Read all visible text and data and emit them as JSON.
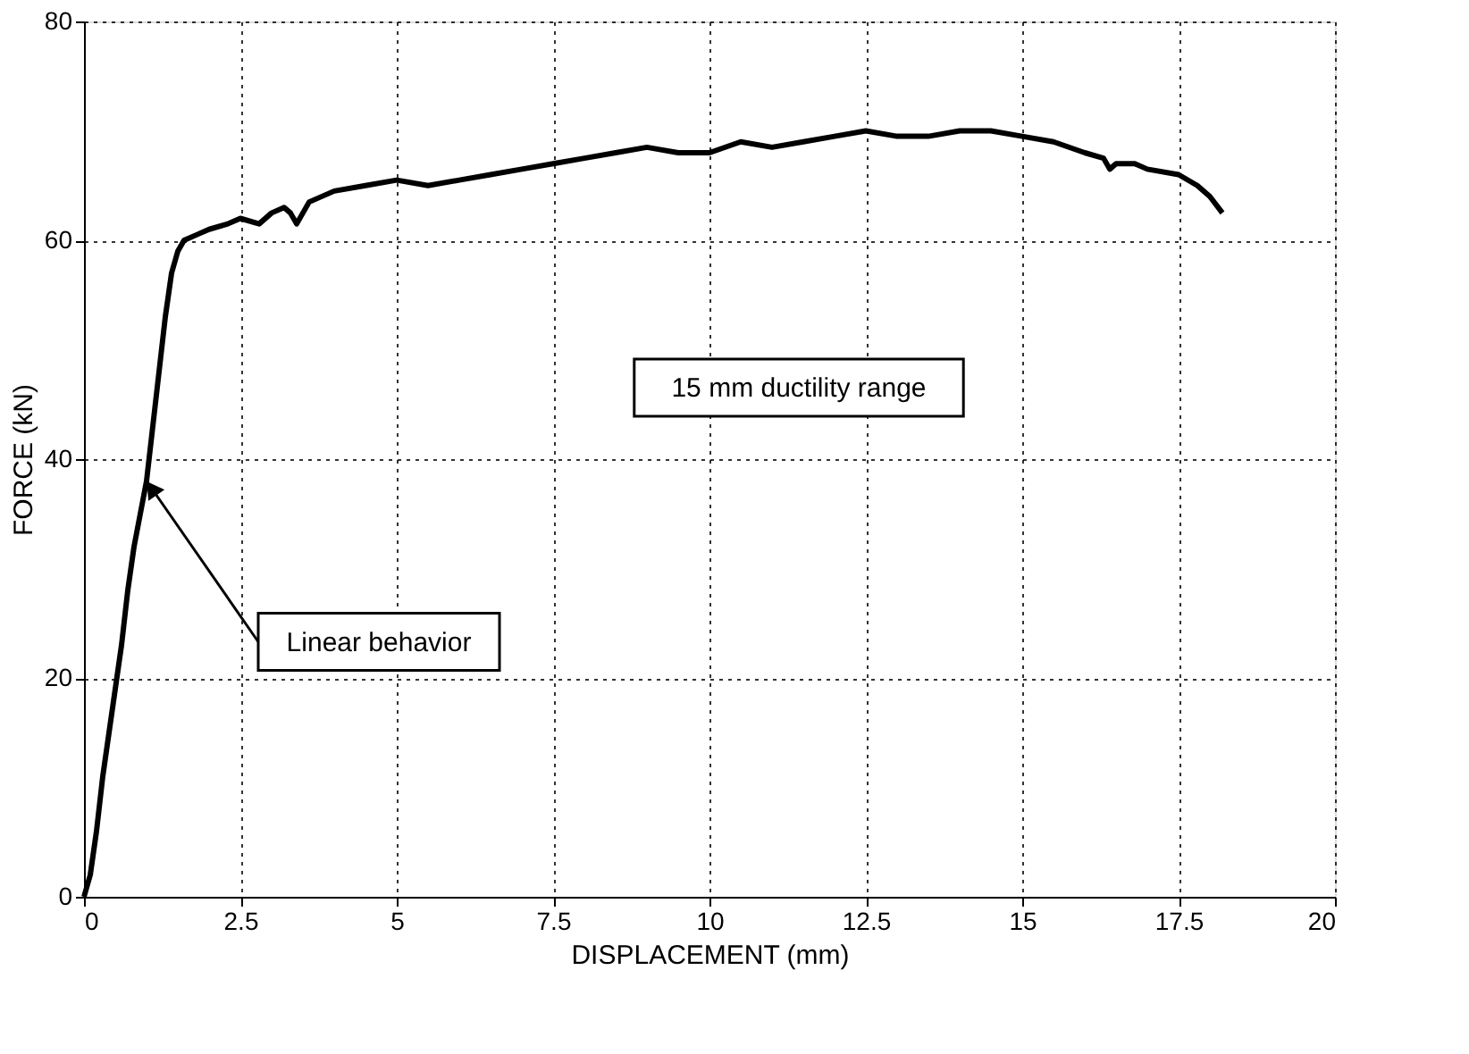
{
  "chart_data": {
    "type": "line",
    "xlabel": "DISPLACEMENT (mm)",
    "ylabel": "FORCE (kN)",
    "x": [
      0,
      0.1,
      0.2,
      0.3,
      0.4,
      0.5,
      0.6,
      0.7,
      0.8,
      0.9,
      1.0,
      1.1,
      1.2,
      1.3,
      1.4,
      1.5,
      1.6,
      1.8,
      2.0,
      2.3,
      2.5,
      2.8,
      3.0,
      3.2,
      3.3,
      3.4,
      3.6,
      4.0,
      4.5,
      5.0,
      5.5,
      6.0,
      6.5,
      7.0,
      7.5,
      8.0,
      8.5,
      9.0,
      9.5,
      10.0,
      10.5,
      11.0,
      11.5,
      12.0,
      12.5,
      13.0,
      13.5,
      14.0,
      14.5,
      15.0,
      15.5,
      16.0,
      16.3,
      16.4,
      16.5,
      16.8,
      17.0,
      17.5,
      17.8,
      18.0,
      18.2
    ],
    "series": [
      {
        "color": "#000000",
        "values": [
          0,
          2,
          6,
          11,
          15,
          19,
          23,
          28,
          32,
          35,
          38,
          43,
          48,
          53,
          57,
          59,
          60,
          60.5,
          61,
          61.5,
          62,
          61.5,
          62.5,
          63,
          62.5,
          61.5,
          63.5,
          64.5,
          65,
          65.5,
          65,
          65.5,
          66,
          66.5,
          67,
          67.5,
          68,
          68.5,
          68,
          68,
          69,
          68.5,
          69,
          69.5,
          70,
          69.5,
          69.5,
          70,
          70,
          69.5,
          69,
          68,
          67.5,
          66.5,
          67,
          67,
          66.5,
          66,
          65,
          64,
          62.5
        ]
      }
    ],
    "xlim": [
      0,
      20
    ],
    "xticks": [
      0,
      2.5,
      5,
      7.5,
      10,
      12.5,
      15,
      17.5,
      20
    ],
    "ylim": [
      0,
      80
    ],
    "yticks": [
      0,
      20,
      40,
      60,
      80
    ],
    "grid": true,
    "line_style": "solid",
    "marker": "none",
    "annotations": [
      "15 mm ductility range",
      {
        "text": "Linear behavior",
        "x": 1.0,
        "y": 38
      }
    ]
  }
}
